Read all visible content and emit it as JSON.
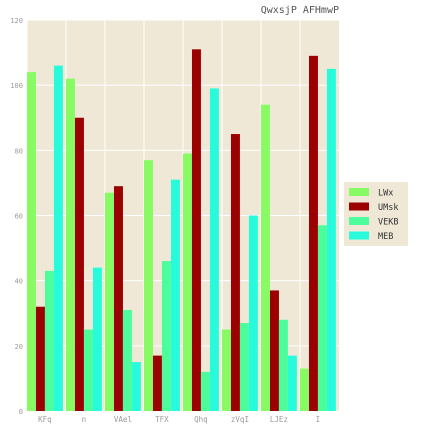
{
  "chart_data": {
    "type": "bar",
    "title": "QwxsjP AFHmwP",
    "xlabel": "",
    "ylabel": "",
    "categories": [
      "KFq",
      "n",
      "VAel",
      "TFX",
      "Qhq",
      "zVqI",
      "LJEz",
      "I"
    ],
    "ylim": [
      0,
      120
    ],
    "yticks": [
      0,
      20,
      40,
      60,
      80,
      100,
      120
    ],
    "grid": true,
    "legend_position": "right",
    "series": [
      {
        "name": "LWx",
        "color": "#88fb64",
        "values": [
          104,
          102,
          67,
          77,
          79,
          25,
          94,
          13
        ]
      },
      {
        "name": "UMsk",
        "color": "#9b0100",
        "values": [
          32,
          90,
          69,
          17,
          111,
          85,
          37,
          109
        ]
      },
      {
        "name": "VEKB",
        "color": "#4dfd9c",
        "values": [
          43,
          25,
          31,
          46,
          12,
          27,
          28,
          57
        ]
      },
      {
        "name": "MEB",
        "color": "#28fbdc",
        "values": [
          106,
          44,
          15,
          71,
          99,
          60,
          17,
          105
        ]
      }
    ]
  },
  "colors": {
    "plot_background": "#efe8d6",
    "grid": "#ffffff",
    "tick_label": "#9a9a9a",
    "title": "#555555"
  }
}
